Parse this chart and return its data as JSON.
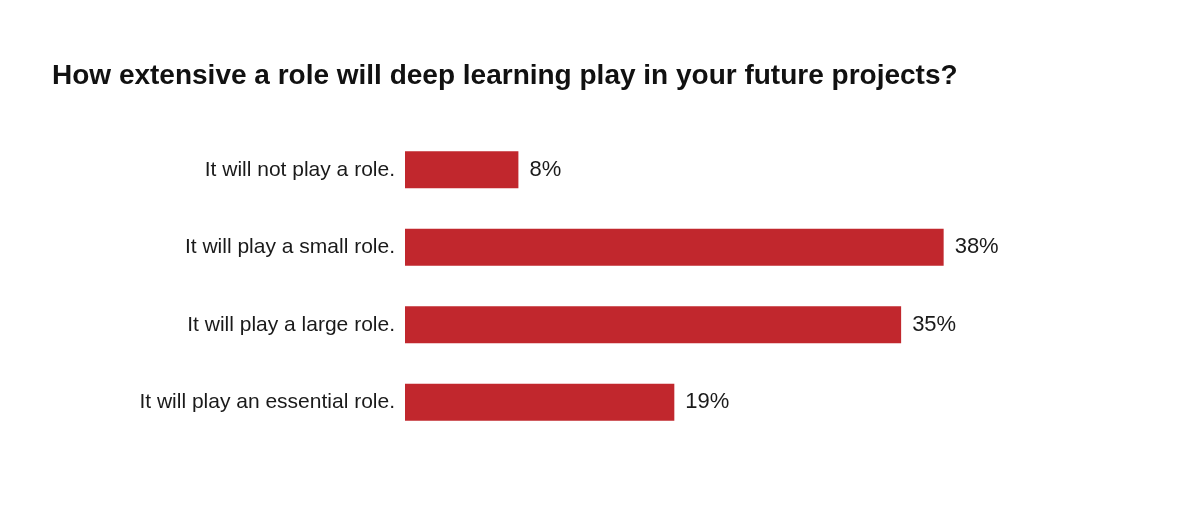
{
  "chart_data": {
    "type": "bar",
    "orientation": "horizontal",
    "title": "How extensive a role will deep learning play in your future projects?",
    "categories": [
      "It will not play a role.",
      "It will play a small role.",
      "It will play a large role.",
      "It will play an essential role."
    ],
    "values": [
      8,
      38,
      35,
      19
    ],
    "value_labels": [
      "8%",
      "38%",
      "35%",
      "19%"
    ],
    "color": "#c1272d",
    "grid": false,
    "legend": false
  }
}
